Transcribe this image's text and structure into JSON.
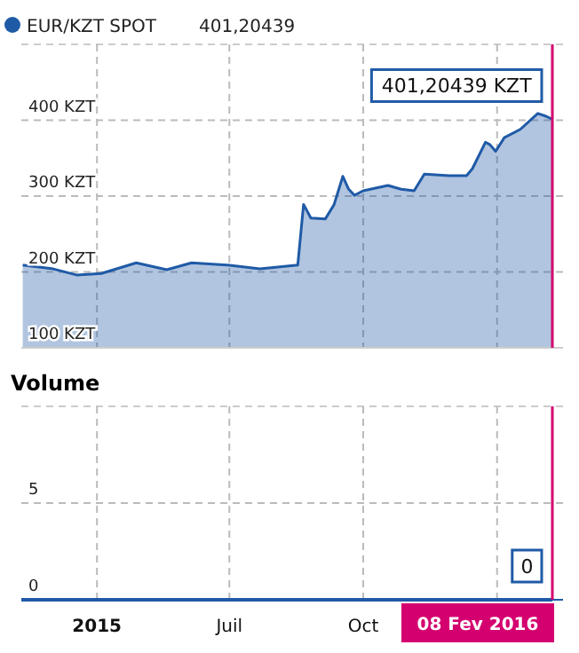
{
  "chart_data": [
    {
      "type": "area",
      "legend": "top left",
      "grid": true,
      "tick_labels": "y",
      "xlim": [
        "2015-02-08",
        "2016-02-08"
      ],
      "xticks": [
        {
          "value": "2015-04-01",
          "label": null
        },
        {
          "value": "2015-07-01",
          "label": null
        },
        {
          "value": "2015-10-01",
          "label": null
        },
        {
          "value": "2016-01-01",
          "label": null
        }
      ],
      "ylim": [
        100,
        500
      ],
      "yticks": [
        {
          "value": 100,
          "label": "100 KZT"
        },
        {
          "value": 200,
          "label": "200 KZT"
        },
        {
          "value": 300,
          "label": "300 KZT"
        },
        {
          "value": 400,
          "label": "400 KZT"
        }
      ],
      "series": [
        {
          "name": "EUR/KZT SPOT",
          "color": "#1f5aa6",
          "x": [
            "2015-02-09",
            "2015-03-02",
            "2015-03-18",
            "2015-04-04",
            "2015-04-28",
            "2015-05-19",
            "2015-06-05",
            "2015-06-30",
            "2015-07-22",
            "2015-08-17",
            "2015-08-21",
            "2015-08-26",
            "2015-09-05",
            "2015-09-11",
            "2015-09-17",
            "2015-09-21",
            "2015-09-25",
            "2015-10-01",
            "2015-10-18",
            "2015-10-27",
            "2015-11-05",
            "2015-11-12",
            "2015-11-29",
            "2015-12-11",
            "2015-12-15",
            "2015-12-24",
            "2015-12-27",
            "2015-12-31",
            "2016-01-06",
            "2016-01-17",
            "2016-01-29",
            "2016-02-04",
            "2016-02-08"
          ],
          "values": [
            209,
            204,
            196,
            198,
            212,
            203,
            212,
            209,
            204,
            209,
            289,
            271,
            270,
            289,
            326,
            309,
            301,
            307,
            314,
            309,
            307,
            329,
            327,
            327,
            336,
            371,
            368,
            359,
            377,
            388,
            409,
            405,
            401.20439
          ]
        }
      ],
      "annotations": [
        "401,20439",
        {
          "text": "401,20439 KZT",
          "x": "2016-02-08",
          "y": 401.20439
        }
      ],
      "ref_lines": [
        {
          "axis": "x",
          "value": "2016-02-08",
          "color": "#d4006f"
        }
      ]
    },
    {
      "type": "line",
      "title": "Volume",
      "grid": true,
      "xlim": [
        "2015-02-08",
        "2016-02-08"
      ],
      "xticks": [
        {
          "value": "2015-04-01",
          "label": "2015"
        },
        {
          "value": "2015-07-01",
          "label": "Juil"
        },
        {
          "value": "2015-10-01",
          "label": "Oct"
        },
        {
          "value": "2016-01-01",
          "label": null
        }
      ],
      "ylim": [
        0,
        10
      ],
      "yticks": [
        0,
        5
      ],
      "series": [
        {
          "color": "#1f5aa6",
          "x": [
            "2015-02-08",
            "2016-02-08"
          ],
          "values": [
            0,
            0
          ]
        }
      ],
      "annotations": [
        {
          "text": "0",
          "x": "2016-02-08",
          "y": 0
        }
      ],
      "ref_lines": [
        {
          "axis": "x",
          "value": "2016-02-08",
          "label": "08 Fev 2016",
          "color": "#d4006f"
        }
      ]
    }
  ]
}
